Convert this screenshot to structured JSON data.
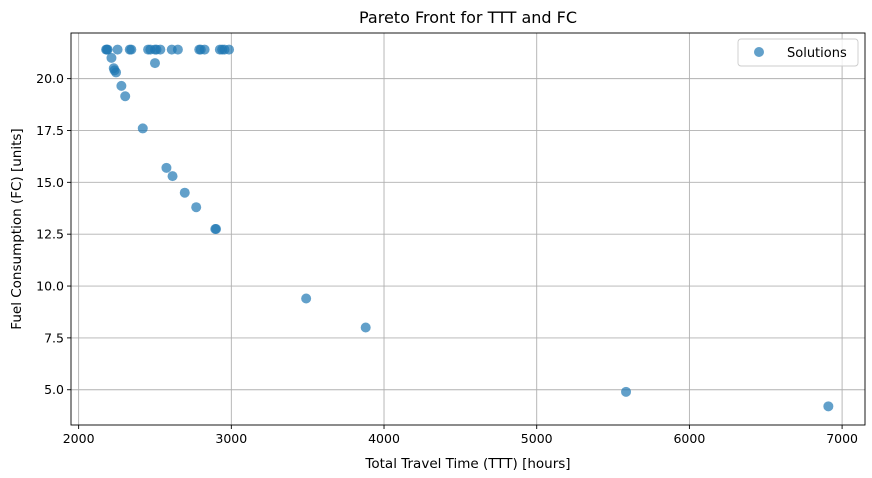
{
  "chart_data": {
    "type": "scatter",
    "title": "Pareto Front for TTT and FC",
    "xlabel": "Total Travel Time (TTT) [hours]",
    "ylabel": "Fuel Consumption (FC) [units]",
    "xlim": [
      1950,
      7150
    ],
    "ylim": [
      3.3,
      22.2
    ],
    "xticks": [
      2000,
      3000,
      4000,
      5000,
      6000,
      7000
    ],
    "yticks": [
      5.0,
      7.5,
      10.0,
      12.5,
      15.0,
      17.5,
      20.0
    ],
    "xtick_labels": [
      "2000",
      "3000",
      "4000",
      "5000",
      "6000",
      "7000"
    ],
    "ytick_labels": [
      "5.0",
      "7.5",
      "10.0",
      "12.5",
      "15.0",
      "17.5",
      "20.0"
    ],
    "grid": true,
    "legend": {
      "position": "top-right",
      "entries": [
        "Solutions"
      ]
    },
    "series": [
      {
        "name": "Solutions",
        "color": "#1f77b4",
        "x": [
          2180,
          2185,
          2190,
          2255,
          2335,
          2345,
          2455,
          2470,
          2500,
          2510,
          2535,
          2610,
          2650,
          2790,
          2800,
          2825,
          2925,
          2940,
          2955,
          2985,
          2215,
          2230,
          2235,
          2245,
          2500,
          2280,
          2305,
          2420,
          2575,
          2615,
          2695,
          2770,
          2895,
          2900,
          3490,
          3880,
          5585,
          6910
        ],
        "y": [
          21.4,
          21.4,
          21.4,
          21.4,
          21.4,
          21.4,
          21.4,
          21.4,
          21.4,
          21.4,
          21.4,
          21.4,
          21.4,
          21.4,
          21.4,
          21.4,
          21.4,
          21.4,
          21.4,
          21.4,
          21.0,
          20.5,
          20.4,
          20.3,
          20.75,
          19.65,
          19.15,
          17.6,
          15.7,
          15.3,
          14.5,
          13.8,
          12.75,
          12.75,
          9.4,
          8.0,
          4.9,
          4.2
        ]
      }
    ]
  }
}
